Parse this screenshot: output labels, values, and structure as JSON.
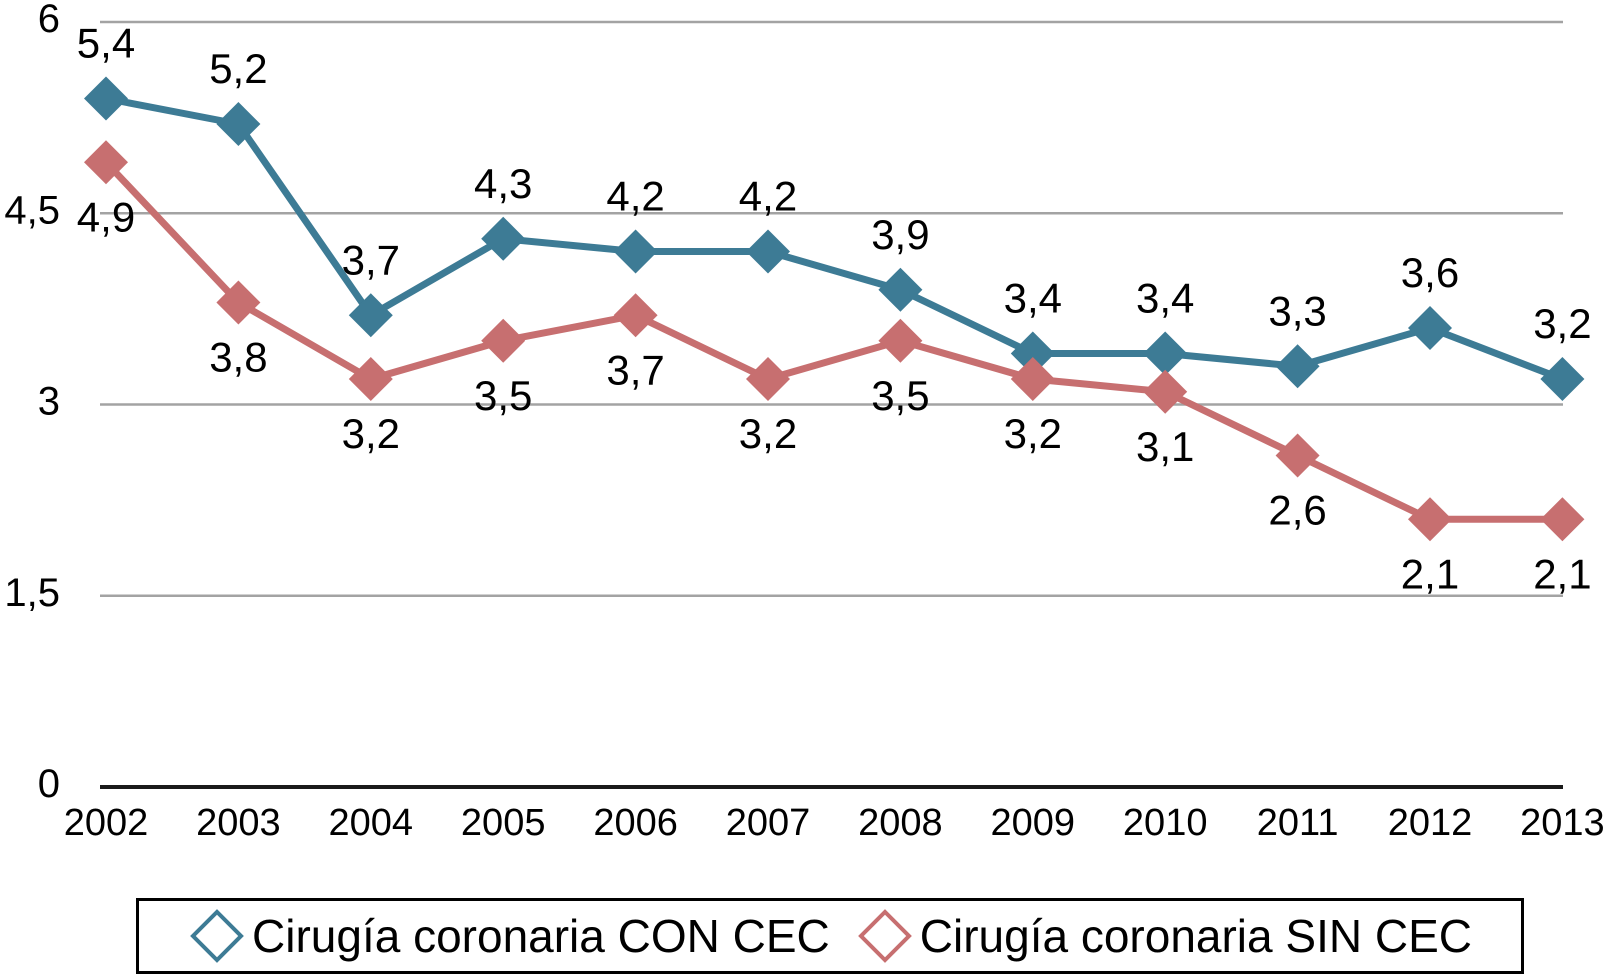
{
  "chart_data": {
    "type": "line",
    "categories": [
      "2002",
      "2003",
      "2004",
      "2005",
      "2006",
      "2007",
      "2008",
      "2009",
      "2010",
      "2011",
      "2012",
      "2013"
    ],
    "series": [
      {
        "name": "Cirugía coronaria CON CEC",
        "color": "#3d7b95",
        "values": [
          5.4,
          5.2,
          3.7,
          4.3,
          4.2,
          4.2,
          3.9,
          3.4,
          3.4,
          3.3,
          3.6,
          3.2
        ],
        "point_labels": [
          "5,4",
          "5,2",
          "3,7",
          "4,3",
          "4,2",
          "4,2",
          "3,9",
          "3,4",
          "3,4",
          "3,3",
          "3,6",
          "3,2"
        ],
        "label_position": "above",
        "marker": "diamond"
      },
      {
        "name": "Cirugía coronaria SIN CEC",
        "color": "#c76f70",
        "values": [
          4.9,
          3.8,
          3.2,
          3.5,
          3.7,
          3.2,
          3.5,
          3.2,
          3.1,
          2.6,
          2.1,
          2.1
        ],
        "point_labels": [
          "4,9",
          "3,8",
          "3,2",
          "3,5",
          "3,7",
          "3,2",
          "3,5",
          "3,2",
          "3,1",
          "2,6",
          "2,1",
          "2,1"
        ],
        "label_position": "below",
        "marker": "diamond"
      }
    ],
    "title": "",
    "xlabel": "",
    "ylabel": "",
    "ylim": [
      0,
      6
    ],
    "yticks": [
      {
        "value": 0,
        "label": "0"
      },
      {
        "value": 1.5,
        "label": "1,5"
      },
      {
        "value": 3,
        "label": "3"
      },
      {
        "value": 4.5,
        "label": "4,5"
      },
      {
        "value": 6,
        "label": "6"
      }
    ],
    "grid": true,
    "decimal_separator": ",",
    "legend_position": "bottom"
  },
  "legend": {
    "items": [
      {
        "label": "Cirugía coronaria CON CEC",
        "color": "#3d7b95"
      },
      {
        "label": "Cirugía coronaria SIN CEC",
        "color": "#c76f70"
      }
    ]
  },
  "colors": {
    "background": "#ffffff",
    "gridline": "#a3a3a3",
    "axis_line": "#1a1a1a",
    "text": "#000000",
    "legend_border": "#000000",
    "series_con_cec": "#3d7b95",
    "series_sin_cec": "#c76f70"
  }
}
